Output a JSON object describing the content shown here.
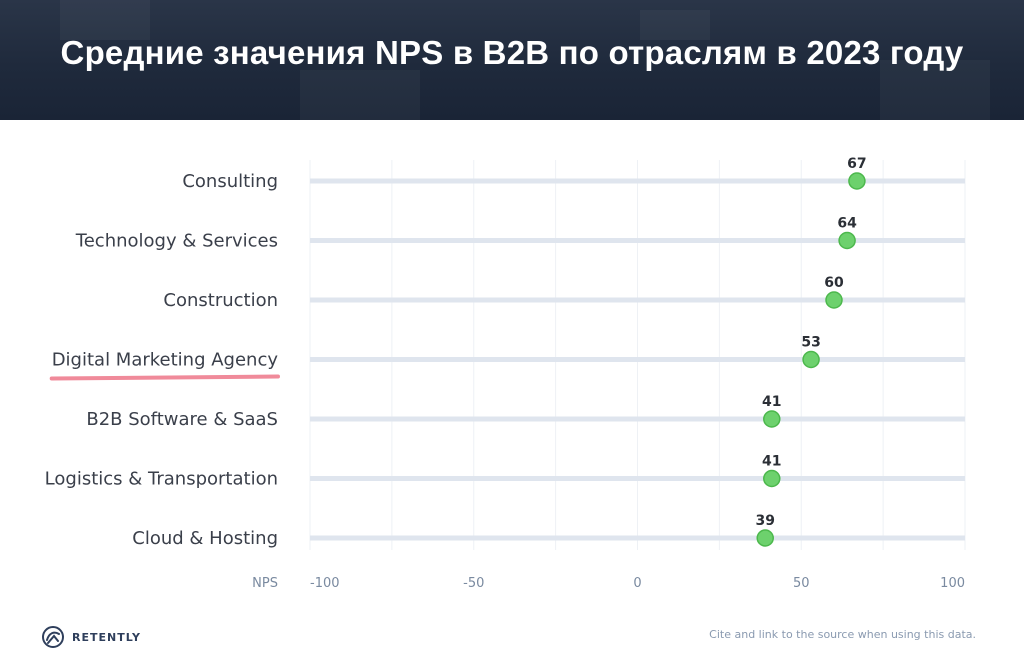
{
  "header": {
    "title": "Средние значения NPS в B2B по отраслям в 2023 году"
  },
  "chart_data": {
    "type": "scatter",
    "title": "Средние значения NPS в B2B по отраслям в 2023 году",
    "categories": [
      "Consulting",
      "Technology & Services",
      "Construction",
      "Digital Marketing Agency",
      "B2B Software & SaaS",
      "Logistics & Transportation",
      "Cloud & Hosting"
    ],
    "values": [
      67,
      64,
      60,
      53,
      41,
      41,
      39
    ],
    "xlabel": "NPS",
    "xlim": [
      -100,
      100
    ],
    "xticks": [
      "-100",
      "-50",
      "0",
      "50",
      "100"
    ],
    "highlighted_category": "Digital Marketing Agency",
    "grid": true,
    "colors": {
      "marker": "#6dd16d",
      "marker_stroke": "#4cb84c",
      "track": "#dfe5ee",
      "grid": "#eef1f5",
      "highlight_underline": "#f08a9a"
    }
  },
  "footer": {
    "brand": "RETENTLY",
    "note": "Cite and link to the source when using this data."
  }
}
